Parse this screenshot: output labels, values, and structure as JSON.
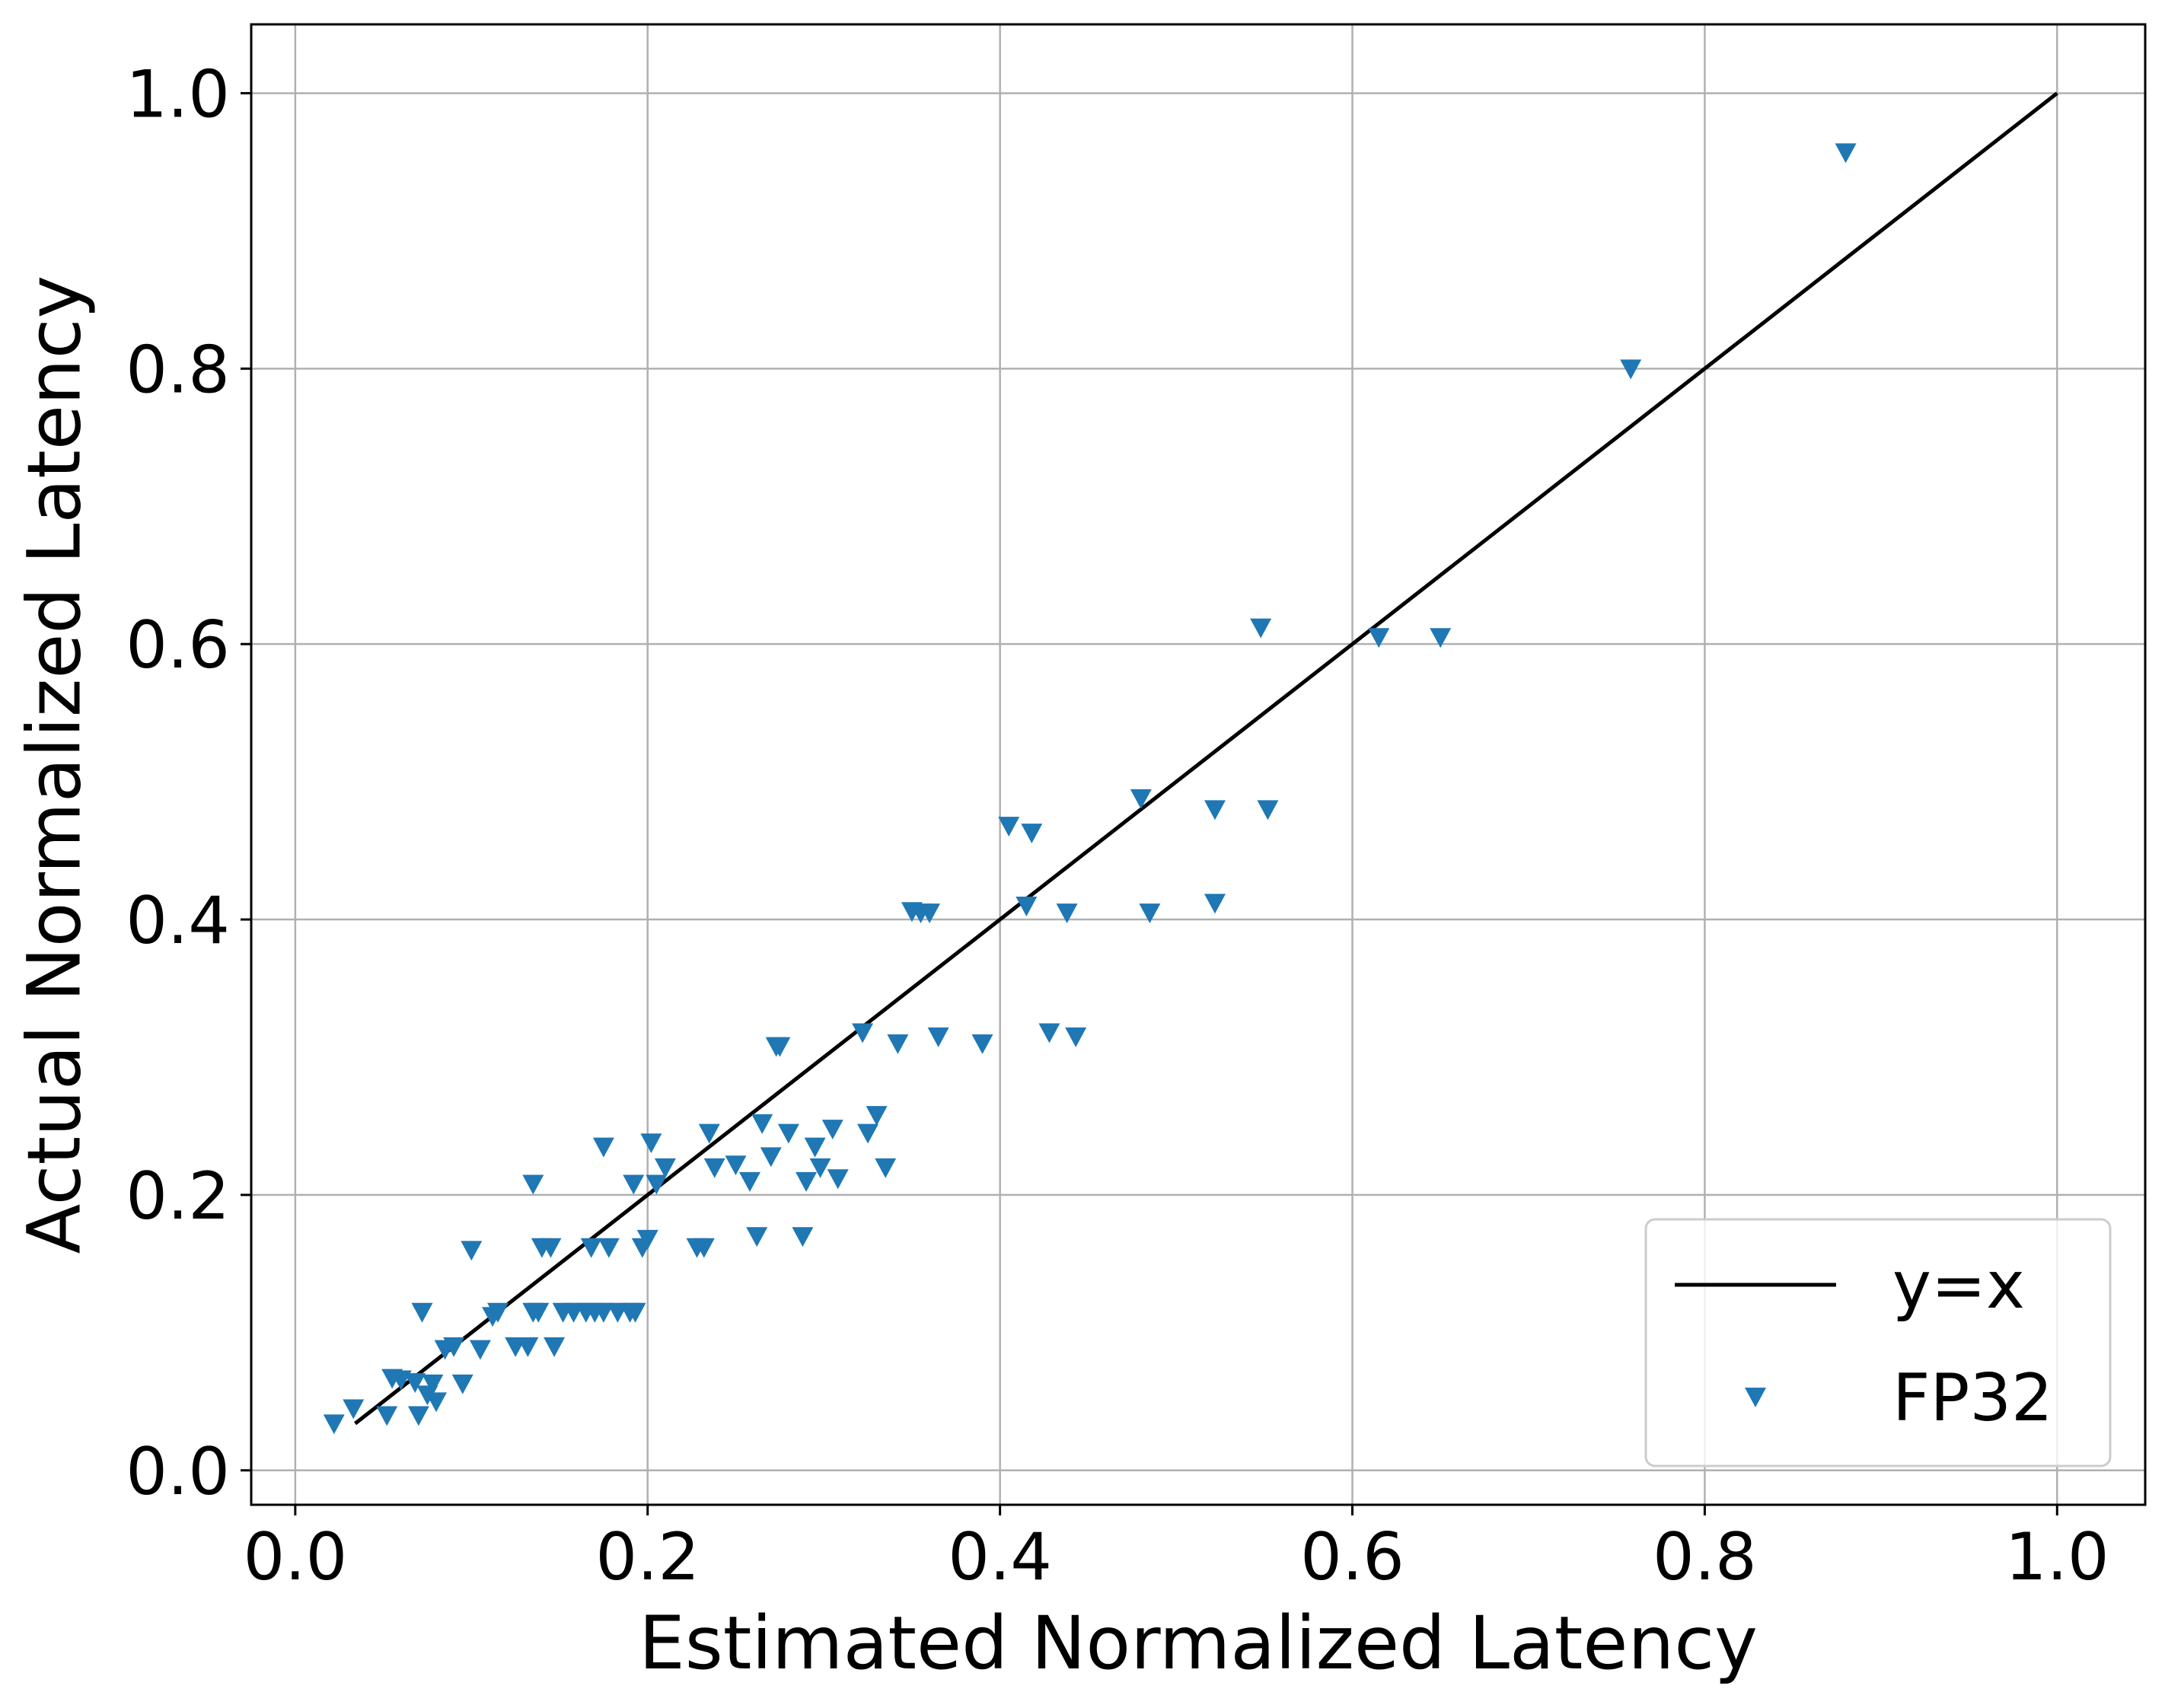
{
  "chart_data": {
    "type": "scatter",
    "title": "",
    "xlabel": "Estimated Normalized Latency",
    "ylabel": "Actual Normalized Latency",
    "xlim": [
      -0.025,
      1.05
    ],
    "ylim": [
      -0.025,
      1.05
    ],
    "grid": true,
    "x_ticks": [
      "0.0",
      "0.2",
      "0.4",
      "0.6",
      "0.8",
      "1.0"
    ],
    "y_ticks": [
      "0.0",
      "0.2",
      "0.4",
      "0.6",
      "0.8",
      "1.0"
    ],
    "legend_position": "bottom-right",
    "colors": {
      "line": "#000000",
      "marker": "#1f77b4",
      "grid": "#b0b0b0"
    },
    "series": [
      {
        "name": "y=x",
        "kind": "line",
        "x": [
          0.034,
          1.0
        ],
        "y": [
          0.034,
          1.0
        ]
      },
      {
        "name": "FP32",
        "kind": "scatter",
        "marker": "triangle-down",
        "points": [
          [
            0.022,
            0.034
          ],
          [
            0.033,
            0.045
          ],
          [
            0.052,
            0.04
          ],
          [
            0.055,
            0.067
          ],
          [
            0.06,
            0.066
          ],
          [
            0.068,
            0.064
          ],
          [
            0.07,
            0.04
          ],
          [
            0.072,
            0.115
          ],
          [
            0.075,
            0.055
          ],
          [
            0.078,
            0.063
          ],
          [
            0.08,
            0.05
          ],
          [
            0.085,
            0.088
          ],
          [
            0.09,
            0.09
          ],
          [
            0.095,
            0.063
          ],
          [
            0.1,
            0.16
          ],
          [
            0.105,
            0.088
          ],
          [
            0.112,
            0.112
          ],
          [
            0.115,
            0.115
          ],
          [
            0.125,
            0.09
          ],
          [
            0.132,
            0.09
          ],
          [
            0.135,
            0.208
          ],
          [
            0.135,
            0.115
          ],
          [
            0.138,
            0.115
          ],
          [
            0.14,
            0.162
          ],
          [
            0.145,
            0.162
          ],
          [
            0.147,
            0.09
          ],
          [
            0.152,
            0.115
          ],
          [
            0.158,
            0.115
          ],
          [
            0.165,
            0.115
          ],
          [
            0.168,
            0.162
          ],
          [
            0.17,
            0.115
          ],
          [
            0.175,
            0.235
          ],
          [
            0.175,
            0.115
          ],
          [
            0.178,
            0.162
          ],
          [
            0.183,
            0.115
          ],
          [
            0.19,
            0.115
          ],
          [
            0.192,
            0.208
          ],
          [
            0.193,
            0.115
          ],
          [
            0.197,
            0.162
          ],
          [
            0.2,
            0.168
          ],
          [
            0.202,
            0.238
          ],
          [
            0.205,
            0.208
          ],
          [
            0.21,
            0.22
          ],
          [
            0.228,
            0.162
          ],
          [
            0.232,
            0.162
          ],
          [
            0.235,
            0.245
          ],
          [
            0.238,
            0.22
          ],
          [
            0.25,
            0.222
          ],
          [
            0.258,
            0.21
          ],
          [
            0.262,
            0.17
          ],
          [
            0.265,
            0.252
          ],
          [
            0.27,
            0.228
          ],
          [
            0.273,
            0.308
          ],
          [
            0.275,
            0.308
          ],
          [
            0.28,
            0.245
          ],
          [
            0.288,
            0.17
          ],
          [
            0.29,
            0.21
          ],
          [
            0.295,
            0.235
          ],
          [
            0.298,
            0.22
          ],
          [
            0.305,
            0.248
          ],
          [
            0.308,
            0.212
          ],
          [
            0.322,
            0.318
          ],
          [
            0.325,
            0.245
          ],
          [
            0.33,
            0.258
          ],
          [
            0.335,
            0.22
          ],
          [
            0.342,
            0.31
          ],
          [
            0.35,
            0.406
          ],
          [
            0.355,
            0.405
          ],
          [
            0.36,
            0.405
          ],
          [
            0.365,
            0.315
          ],
          [
            0.39,
            0.31
          ],
          [
            0.405,
            0.468
          ],
          [
            0.415,
            0.41
          ],
          [
            0.418,
            0.463
          ],
          [
            0.428,
            0.318
          ],
          [
            0.438,
            0.405
          ],
          [
            0.443,
            0.315
          ],
          [
            0.48,
            0.488
          ],
          [
            0.485,
            0.405
          ],
          [
            0.522,
            0.48
          ],
          [
            0.522,
            0.412
          ],
          [
            0.548,
            0.612
          ],
          [
            0.552,
            0.48
          ],
          [
            0.615,
            0.605
          ],
          [
            0.65,
            0.605
          ],
          [
            0.758,
            0.8
          ],
          [
            0.88,
            0.957
          ]
        ]
      }
    ]
  }
}
